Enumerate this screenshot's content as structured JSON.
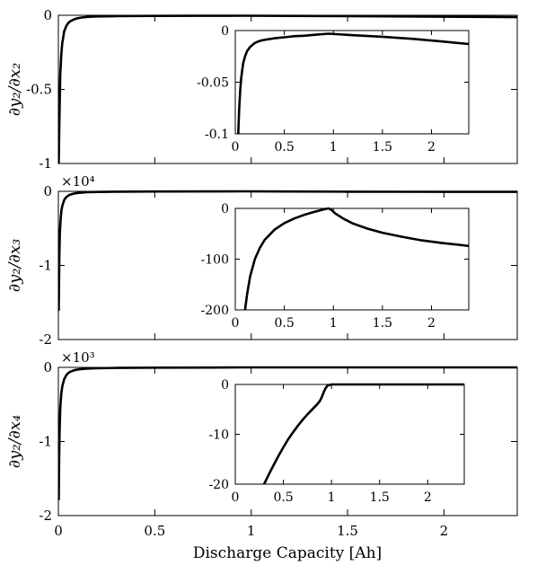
{
  "chart_data": [
    {
      "type": "line",
      "ylabel": "∂y₂/∂x₂",
      "exponent": "",
      "xlim": [
        0,
        2.38
      ],
      "ylim": [
        -1,
        0
      ],
      "xticks": [
        0,
        0.5,
        1,
        1.5,
        2
      ],
      "xtick_labels": [
        "",
        "",
        "",
        "",
        ""
      ],
      "yticks": [
        -1,
        -0.5,
        0
      ],
      "ytick_labels": [
        "-1",
        "-0.5",
        "0"
      ],
      "series": [
        {
          "x": [
            0.002,
            0.005,
            0.01,
            0.015,
            0.02,
            0.03,
            0.04,
            0.05,
            0.06,
            0.08,
            0.1,
            0.12,
            0.15,
            0.2,
            0.25,
            0.3,
            0.4,
            0.5,
            0.7,
            0.95,
            1.2,
            1.5,
            1.8,
            2.1,
            2.38
          ],
          "y": [
            -1,
            -0.72,
            -0.4,
            -0.27,
            -0.19,
            -0.11,
            -0.075,
            -0.055,
            -0.042,
            -0.028,
            -0.02,
            -0.015,
            -0.011,
            -0.008,
            -0.007,
            -0.006,
            -0.005,
            -0.004,
            -0.0035,
            -0.003,
            -0.0045,
            -0.006,
            -0.008,
            -0.01,
            -0.013
          ]
        }
      ],
      "inset": {
        "xlim": [
          0,
          2.38
        ],
        "ylim": [
          -0.1,
          0
        ],
        "xticks": [
          0,
          0.5,
          1,
          1.5,
          2
        ],
        "xtick_labels": [
          "0",
          "0.5",
          "1",
          "1.5",
          "2"
        ],
        "yticks": [
          -0.1,
          -0.05,
          0
        ],
        "ytick_labels": [
          "-0.1",
          "-0.05",
          "0"
        ],
        "series": [
          {
            "x": [
              0.03,
              0.04,
              0.05,
              0.06,
              0.08,
              0.1,
              0.12,
              0.15,
              0.2,
              0.25,
              0.3,
              0.4,
              0.5,
              0.6,
              0.7,
              0.8,
              0.95,
              1.2,
              1.5,
              1.8,
              2.1,
              2.38
            ],
            "y": [
              -0.1,
              -0.075,
              -0.058,
              -0.046,
              -0.032,
              -0.025,
              -0.02,
              -0.016,
              -0.012,
              -0.01,
              -0.009,
              -0.0075,
              -0.0065,
              -0.0055,
              -0.005,
              -0.0042,
              -0.003,
              -0.0045,
              -0.006,
              -0.008,
              -0.0105,
              -0.013
            ]
          }
        ]
      }
    },
    {
      "type": "line",
      "ylabel": "∂y₂/∂x₃",
      "exponent": "×10⁴",
      "xlim": [
        0,
        2.38
      ],
      "ylim": [
        -2,
        0
      ],
      "xticks": [
        0,
        0.5,
        1,
        1.5,
        2
      ],
      "xtick_labels": [
        "",
        "",
        "",
        "",
        ""
      ],
      "yticks": [
        -2,
        -1,
        0
      ],
      "ytick_labels": [
        "-2",
        "-1",
        "0"
      ],
      "series": [
        {
          "x": [
            0.002,
            0.005,
            0.008,
            0.012,
            0.016,
            0.02,
            0.03,
            0.04,
            0.05,
            0.06,
            0.08,
            0.1,
            0.15,
            0.2,
            0.3,
            0.5,
            0.95,
            1.2,
            1.5,
            1.8,
            2.1,
            2.38
          ],
          "y": [
            -1.6,
            -0.85,
            -0.55,
            -0.36,
            -0.26,
            -0.2,
            -0.12,
            -0.08,
            -0.06,
            -0.045,
            -0.03,
            -0.022,
            -0.012,
            -0.008,
            -0.005,
            -0.003,
            0,
            -0.003,
            -0.005,
            -0.006,
            -0.007,
            -0.0075
          ]
        }
      ],
      "inset": {
        "xlim": [
          0,
          2.38
        ],
        "ylim": [
          -200,
          0
        ],
        "xticks": [
          0,
          0.5,
          1,
          1.5,
          2
        ],
        "xtick_labels": [
          "0",
          "0.5",
          "1",
          "1.5",
          "2"
        ],
        "yticks": [
          -200,
          -100,
          0
        ],
        "ytick_labels": [
          "-200",
          "-100",
          "0"
        ],
        "series": [
          {
            "x": [
              0.1,
              0.12,
              0.15,
              0.2,
              0.25,
              0.3,
              0.4,
              0.5,
              0.6,
              0.7,
              0.8,
              0.88,
              0.92,
              0.95,
              0.98,
              1.02,
              1.1,
              1.2,
              1.35,
              1.5,
              1.7,
              1.9,
              2.1,
              2.38
            ],
            "y": [
              -200,
              -170,
              -135,
              -100,
              -78,
              -62,
              -42,
              -29,
              -20,
              -13,
              -7,
              -3,
              -1,
              0,
              -3,
              -10,
              -20,
              -30,
              -40,
              -48,
              -56,
              -63,
              -68,
              -74
            ]
          }
        ]
      }
    },
    {
      "type": "line",
      "ylabel": "∂y₂/∂x₄",
      "exponent": "×10³",
      "xlim": [
        0,
        2.38
      ],
      "ylim": [
        -2,
        0
      ],
      "xticks": [
        0,
        0.5,
        1,
        1.5,
        2
      ],
      "xtick_labels": [
        "0",
        "0.5",
        "1",
        "1.5",
        "2"
      ],
      "yticks": [
        -2,
        -1,
        0
      ],
      "ytick_labels": [
        "-2",
        "-1",
        "0"
      ],
      "series": [
        {
          "x": [
            0.002,
            0.004,
            0.006,
            0.01,
            0.015,
            0.02,
            0.03,
            0.04,
            0.05,
            0.06,
            0.08,
            0.1,
            0.15,
            0.2,
            0.3,
            0.5,
            0.8,
            0.95,
            1.2,
            1.6,
            2.0,
            2.38
          ],
          "y": [
            -1.78,
            -1.2,
            -0.9,
            -0.55,
            -0.36,
            -0.26,
            -0.16,
            -0.11,
            -0.08,
            -0.06,
            -0.04,
            -0.028,
            -0.016,
            -0.011,
            -0.007,
            -0.004,
            -0.002,
            0,
            0,
            0,
            0,
            0
          ]
        }
      ],
      "inset": {
        "xlim": [
          0,
          2.38
        ],
        "ylim": [
          -20,
          0
        ],
        "xticks": [
          0,
          0.5,
          1,
          1.5,
          2
        ],
        "xtick_labels": [
          "0",
          "0.5",
          "1",
          "1.5",
          "2"
        ],
        "yticks": [
          -20,
          -10,
          0
        ],
        "ytick_labels": [
          "-20",
          "-10",
          "0"
        ],
        "series": [
          {
            "x": [
              0.3,
              0.35,
              0.4,
              0.45,
              0.5,
              0.55,
              0.6,
              0.65,
              0.7,
              0.75,
              0.8,
              0.85,
              0.88,
              0.9,
              0.92,
              0.94,
              0.96,
              1.0,
              1.2,
              1.5,
              1.8,
              2.1,
              2.38
            ],
            "y": [
              -20,
              -18,
              -16.1,
              -14.3,
              -12.6,
              -11,
              -9.6,
              -8.3,
              -7.1,
              -6,
              -5,
              -4,
              -3.3,
              -2.5,
              -1.5,
              -0.7,
              -0.2,
              0,
              0,
              0,
              0,
              0,
              0
            ]
          }
        ]
      }
    }
  ],
  "xlabel": "Discharge Capacity [Ah]"
}
